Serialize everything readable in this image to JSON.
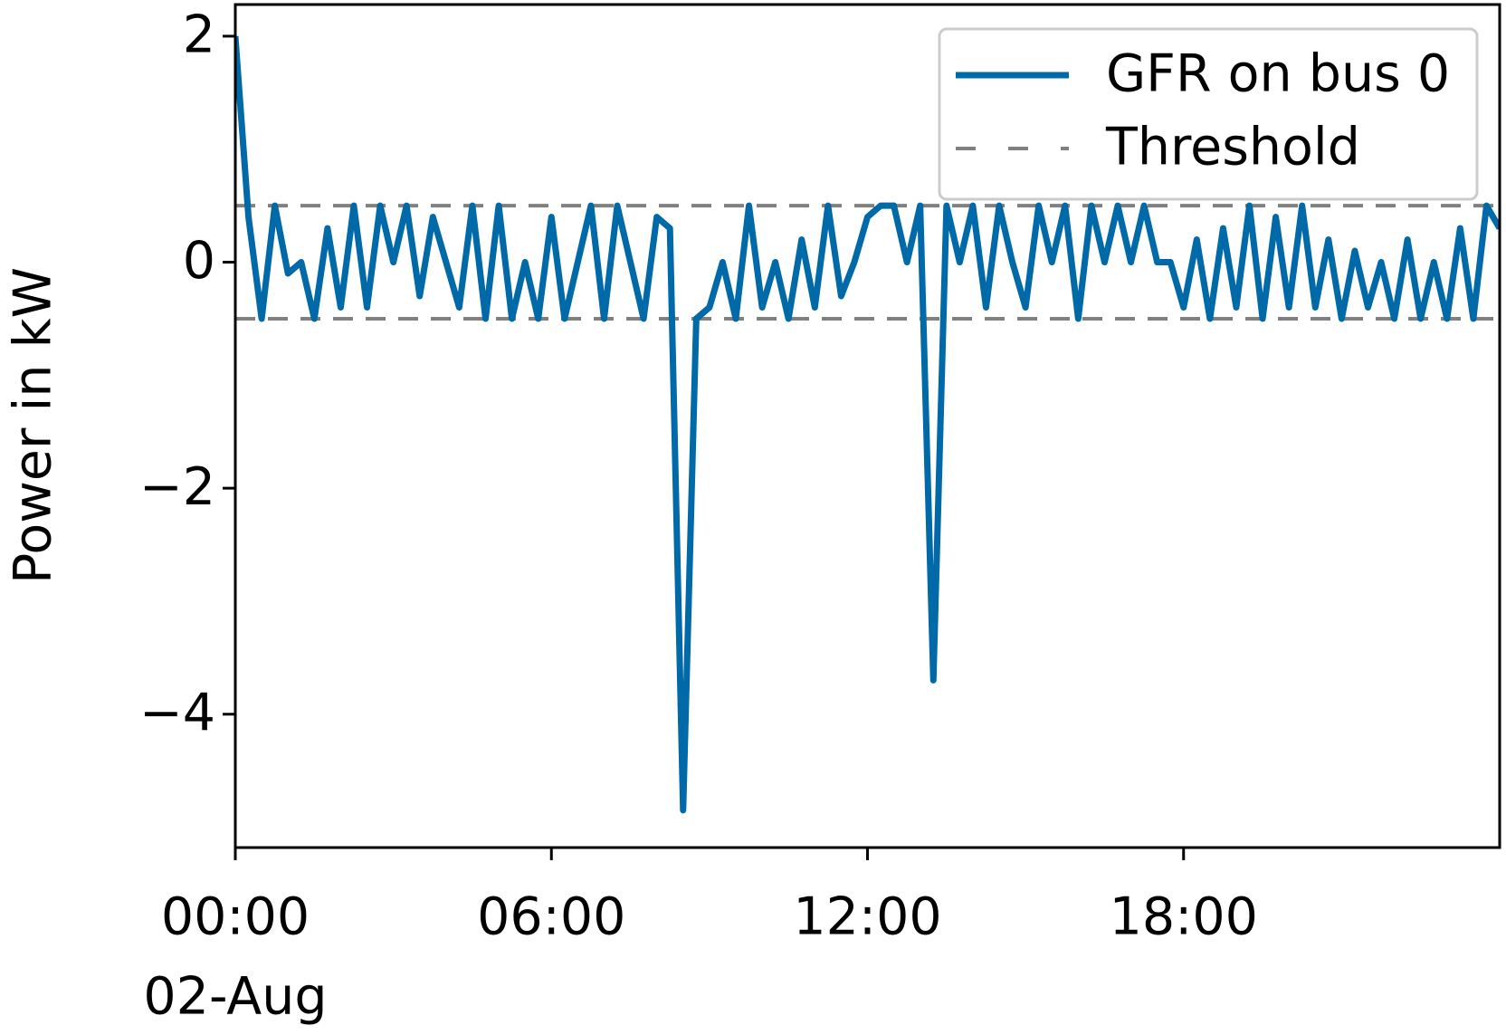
{
  "chart_data": {
    "type": "line",
    "ylabel": "Power in kW",
    "x": [
      0,
      0.25,
      0.5,
      0.75,
      1,
      1.25,
      1.5,
      1.75,
      2,
      2.25,
      2.5,
      2.75,
      3,
      3.25,
      3.5,
      3.75,
      4,
      4.25,
      4.5,
      4.75,
      5,
      5.25,
      5.5,
      5.75,
      6,
      6.25,
      6.5,
      6.75,
      7,
      7.25,
      7.5,
      7.75,
      8,
      8.25,
      8.5,
      8.75,
      9,
      9.25,
      9.5,
      9.75,
      10,
      10.25,
      10.5,
      10.75,
      11,
      11.25,
      11.5,
      11.75,
      12,
      12.25,
      12.5,
      12.75,
      13,
      13.25,
      13.5,
      13.75,
      14,
      14.25,
      14.5,
      14.75,
      15,
      15.25,
      15.5,
      15.75,
      16,
      16.25,
      16.5,
      16.75,
      17,
      17.25,
      17.5,
      17.75,
      18,
      18.25,
      18.5,
      18.75,
      19,
      19.25,
      19.5,
      19.75,
      20,
      20.25,
      20.5,
      20.75,
      21,
      21.25,
      21.5,
      21.75,
      22,
      22.25,
      22.5,
      22.75,
      23,
      23.25,
      23.5,
      23.75,
      24
    ],
    "series": [
      {
        "name": "GFR on bus 0",
        "color": "#0069a8",
        "values": [
          2.0,
          0.4,
          -0.5,
          0.5,
          -0.1,
          0,
          -0.5,
          0.3,
          -0.4,
          0.5,
          -0.4,
          0.5,
          0,
          0.5,
          -0.3,
          0.4,
          0,
          -0.4,
          0.5,
          -0.5,
          0.5,
          -0.5,
          0,
          -0.5,
          0.4,
          -0.5,
          0,
          0.5,
          -0.5,
          0.5,
          0,
          -0.5,
          0.4,
          0.3,
          -4.85,
          -0.5,
          -0.4,
          0,
          -0.5,
          0.5,
          -0.4,
          0,
          -0.5,
          0.2,
          -0.4,
          0.5,
          -0.3,
          0,
          0.4,
          0.5,
          0.5,
          0,
          0.5,
          -3.7,
          0.5,
          0,
          0.5,
          -0.4,
          0.5,
          0,
          -0.4,
          0.5,
          0,
          0.5,
          -0.5,
          0.5,
          0,
          0.5,
          0,
          0.5,
          0,
          0,
          -0.4,
          0.2,
          -0.5,
          0.3,
          -0.4,
          0.5,
          -0.5,
          0.4,
          -0.4,
          0.5,
          -0.4,
          0.2,
          -0.5,
          0.1,
          -0.4,
          0,
          -0.5,
          0.2,
          -0.5,
          0,
          -0.5,
          0.3,
          -0.5,
          0.5,
          0.3
        ]
      }
    ],
    "threshold": {
      "name": "Threshold",
      "color": "#808080",
      "values": [
        0.5,
        -0.5
      ]
    },
    "xlim": [
      0,
      24
    ],
    "xticks": [
      {
        "value": 0,
        "label": "00:00"
      },
      {
        "value": 6,
        "label": "06:00"
      },
      {
        "value": 12,
        "label": "12:00"
      },
      {
        "value": 18,
        "label": "18:00"
      }
    ],
    "x_start_date": "02-Aug",
    "ylim": [
      -5.18,
      2.28
    ],
    "yticks": [
      {
        "value": -4,
        "label": "−4"
      },
      {
        "value": -2,
        "label": "−2"
      },
      0,
      2
    ],
    "legend": "upper right"
  }
}
